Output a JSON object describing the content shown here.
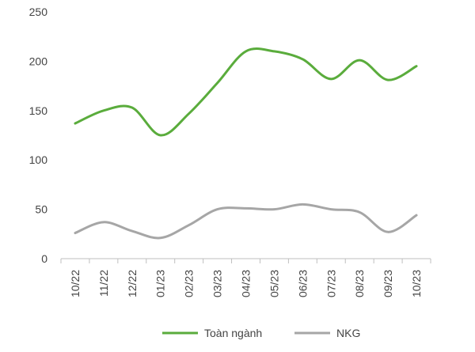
{
  "chart_data": {
    "type": "line",
    "categories": [
      "10/22",
      "11/22",
      "12/22",
      "01/23",
      "02/23",
      "03/23",
      "04/23",
      "05/23",
      "06/23",
      "07/23",
      "08/23",
      "09/23",
      "10/23"
    ],
    "series": [
      {
        "name": "Toàn ngành",
        "color": "#5aac3c",
        "values": [
          137,
          150,
          153,
          125,
          147,
          178,
          210,
          210,
          202,
          182,
          201,
          181,
          195
        ]
      },
      {
        "name": "NKG",
        "color": "#a6a6a6",
        "values": [
          26,
          37,
          28,
          21,
          34,
          50,
          51,
          50,
          55,
          50,
          47,
          27,
          44
        ]
      }
    ],
    "ylim": [
      0,
      250
    ],
    "yticks": [
      0,
      50,
      100,
      150,
      200,
      250
    ],
    "grid": false,
    "legend_position": "bottom"
  }
}
